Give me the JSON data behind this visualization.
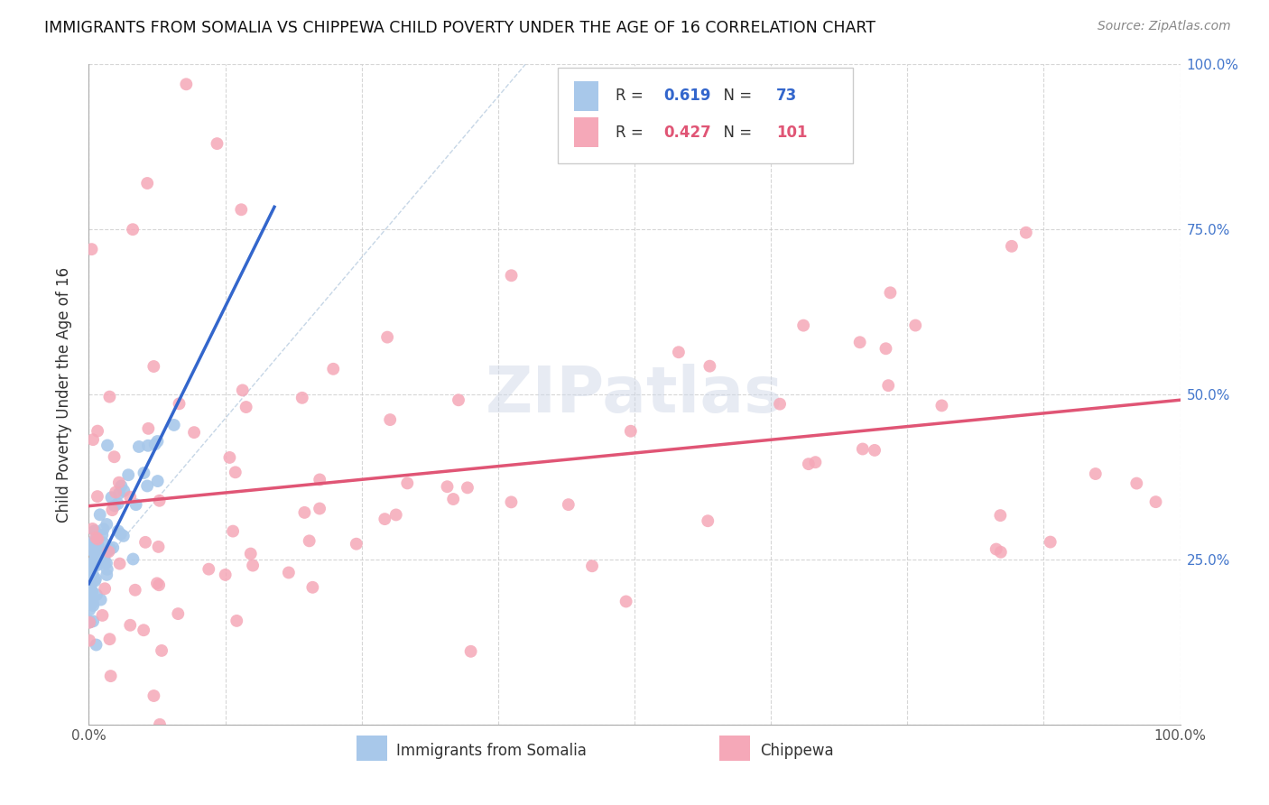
{
  "title": "IMMIGRANTS FROM SOMALIA VS CHIPPEWA CHILD POVERTY UNDER THE AGE OF 16 CORRELATION CHART",
  "source": "Source: ZipAtlas.com",
  "ylabel": "Child Poverty Under the Age of 16",
  "legend_label1": "Immigrants from Somalia",
  "legend_label2": "Chippewa",
  "r1": 0.619,
  "n1": 73,
  "r2": 0.427,
  "n2": 101,
  "color1": "#a8c8ea",
  "color2": "#f5a8b8",
  "trendline1_color": "#3366cc",
  "trendline2_color": "#e05575",
  "diag_line_color": "#b8cce0",
  "soma_seed": 42,
  "chip_seed": 99
}
